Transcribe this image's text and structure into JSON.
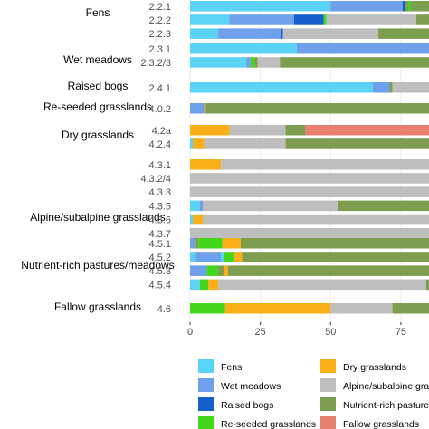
{
  "chart_data": {
    "type": "bar",
    "orientation": "horizontal",
    "stacked": true,
    "xlim": [
      0,
      85
    ],
    "x_ticks": [
      0,
      25,
      50,
      75
    ],
    "grid": true,
    "legend_position": "bottom",
    "colors": {
      "Fens": "#5BD3F5",
      "Wet meadows": "#6FA0EB",
      "Raised bogs": "#1560CC",
      "Re-seeded grasslands": "#44D61A",
      "Dry grasslands": "#FAAE17",
      "Alpine/subalpine grasslands": "#BEBEBE",
      "Nutrient-rich pastures/meadows": "#7E9E4F",
      "Fallow grasslands": "#E88070"
    },
    "legend": [
      {
        "key": "Fens",
        "label": "Fens"
      },
      {
        "key": "Dry grasslands",
        "label": "Dry grasslands"
      },
      {
        "key": "Wet meadows",
        "label": "Wet meadows"
      },
      {
        "key": "Alpine/subalpine grasslands",
        "label": "Alpine/subalpine grasslands"
      },
      {
        "key": "Raised bogs",
        "label": "Raised bogs"
      },
      {
        "key": "Nutrient-rich pastures/meadows",
        "label": "Nutrient-rich pastures/meadows"
      },
      {
        "key": "Re-seeded grasslands",
        "label": "Re-seeded grasslands"
      },
      {
        "key": "Fallow grasslands",
        "label": "Fallow grasslands"
      }
    ],
    "groups": [
      {
        "name": "Fens",
        "rows": [
          {
            "label": "2.2.1",
            "segments": [
              [
                "Fens",
                50
              ],
              [
                "Wet meadows",
                25.6
              ],
              [
                "Raised bogs",
                0.8
              ],
              [
                "Nutrient-rich pastures/meadows",
                1.2
              ],
              [
                "Re-seeded grasslands",
                0.8
              ],
              [
                "Nutrient-rich pastures/meadows",
                7
              ]
            ]
          },
          {
            "label": "2.2.2",
            "segments": [
              [
                "Fens",
                14
              ],
              [
                "Wet meadows",
                23
              ],
              [
                "Raised bogs",
                10.5
              ],
              [
                "Re-seeded grasslands",
                1
              ],
              [
                "Alpine/subalpine grasslands",
                32
              ],
              [
                "Nutrient-rich pastures/meadows",
                5
              ]
            ]
          },
          {
            "label": "2.2.3",
            "segments": [
              [
                "Fens",
                10
              ],
              [
                "Wet meadows",
                22.5
              ],
              [
                "Raised bogs",
                0.5
              ],
              [
                "Alpine/subalpine grasslands",
                34
              ],
              [
                "Nutrient-rich pastures/meadows",
                18
              ]
            ]
          }
        ]
      },
      {
        "name": "Wet meadows",
        "rows": [
          {
            "label": "2.3.1",
            "segments": [
              [
                "Fens",
                38
              ],
              [
                "Wet meadows",
                47
              ]
            ]
          },
          {
            "label": "2.3.2/3",
            "segments": [
              [
                "Fens",
                20
              ],
              [
                "Wet meadows",
                1.5
              ],
              [
                "Re-seeded grasslands",
                1.5
              ],
              [
                "Nutrient-rich pastures/meadows",
                1
              ],
              [
                "Alpine/subalpine grasslands",
                8
              ],
              [
                "Nutrient-rich pastures/meadows",
                53
              ]
            ]
          }
        ]
      },
      {
        "name": "Raised bogs",
        "rows": [
          {
            "label": "2.4.1",
            "segments": [
              [
                "Fens",
                65
              ],
              [
                "Wet meadows",
                6
              ],
              [
                "Nutrient-rich pastures/meadows",
                1
              ],
              [
                "Alpine/subalpine grasslands",
                13
              ]
            ]
          }
        ]
      },
      {
        "name": "Re-seeded grasslands",
        "rows": [
          {
            "label": "4.0.2",
            "segments": [
              [
                "Wet meadows",
                5
              ],
              [
                "Dry grasslands",
                0.6
              ],
              [
                "Nutrient-rich pastures/meadows",
                79.4
              ]
            ]
          }
        ]
      },
      {
        "name": "Dry grasslands",
        "rows": [
          {
            "label": "4.2a",
            "segments": [
              [
                "Dry grasslands",
                14
              ],
              [
                "Alpine/subalpine grasslands",
                20
              ],
              [
                "Nutrient-rich pastures/meadows",
                7
              ],
              [
                "Fallow grasslands",
                44
              ]
            ]
          },
          {
            "label": "4.2.4",
            "segments": [
              [
                "Fens",
                1
              ],
              [
                "Dry grasslands",
                4
              ],
              [
                "Alpine/subalpine grasslands",
                29
              ],
              [
                "Nutrient-rich pastures/meadows",
                51
              ]
            ]
          }
        ]
      },
      {
        "name": "Alpine/subalpine grasslands",
        "rows": [
          {
            "label": "4.3.1",
            "segments": [
              [
                "Dry grasslands",
                11
              ],
              [
                "Alpine/subalpine grasslands",
                74
              ]
            ]
          },
          {
            "label": "4.3.2/4",
            "segments": [
              [
                "Alpine/subalpine grasslands",
                85
              ]
            ]
          },
          {
            "label": "4.3.3",
            "segments": [
              [
                "Alpine/subalpine grasslands",
                85
              ]
            ]
          },
          {
            "label": "4.3.5",
            "segments": [
              [
                "Fens",
                3.5
              ],
              [
                "Wet meadows",
                1
              ],
              [
                "Alpine/subalpine grasslands",
                48
              ],
              [
                "Nutrient-rich pastures/meadows",
                32.5
              ]
            ]
          },
          {
            "label": "4.3.6",
            "segments": [
              [
                "Fens",
                1
              ],
              [
                "Dry grasslands",
                3.5
              ],
              [
                "Alpine/subalpine grasslands",
                80.5
              ]
            ]
          },
          {
            "label": "4.3.7",
            "segments": [
              [
                "Alpine/subalpine grasslands",
                85
              ]
            ]
          }
        ]
      },
      {
        "name": "Nutrient-rich pastures/meadows",
        "rows": [
          {
            "label": "4.5.1",
            "segments": [
              [
                "Wet meadows",
                2
              ],
              [
                "Nutrient-rich pastures/meadows",
                1
              ],
              [
                "Re-seeded grasslands",
                8.5
              ],
              [
                "Dry grasslands",
                6.5
              ],
              [
                "Nutrient-rich pastures/meadows",
                67
              ]
            ]
          },
          {
            "label": "4.5.2",
            "segments": [
              [
                "Fens",
                2
              ],
              [
                "Wet meadows",
                9
              ],
              [
                "Fens",
                1
              ],
              [
                "Re-seeded grasslands",
                3.5
              ],
              [
                "Dry grasslands",
                3
              ],
              [
                "Nutrient-rich pastures/meadows",
                66.5
              ]
            ]
          },
          {
            "label": "4.5.3",
            "segments": [
              [
                "Wet meadows",
                6
              ],
              [
                "Re-seeded grasslands",
                4
              ],
              [
                "Nutrient-rich pastures/meadows",
                2
              ],
              [
                "Dry grasslands",
                1.5
              ],
              [
                "Nutrient-rich pastures/meadows",
                71.5
              ]
            ]
          },
          {
            "label": "4.5.4",
            "segments": [
              [
                "Fens",
                3.5
              ],
              [
                "Re-seeded grasslands",
                3
              ],
              [
                "Dry grasslands",
                3.5
              ],
              [
                "Alpine/subalpine grasslands",
                74
              ],
              [
                "Nutrient-rich pastures/meadows",
                1
              ]
            ]
          }
        ]
      },
      {
        "name": "Fallow grasslands",
        "rows": [
          {
            "label": "4.6",
            "segments": [
              [
                "Re-seeded grasslands",
                12.5
              ],
              [
                "Dry grasslands",
                37.5
              ],
              [
                "Alpine/subalpine grasslands",
                22
              ],
              [
                "Nutrient-rich pastures/meadows",
                13
              ]
            ]
          }
        ]
      }
    ]
  }
}
